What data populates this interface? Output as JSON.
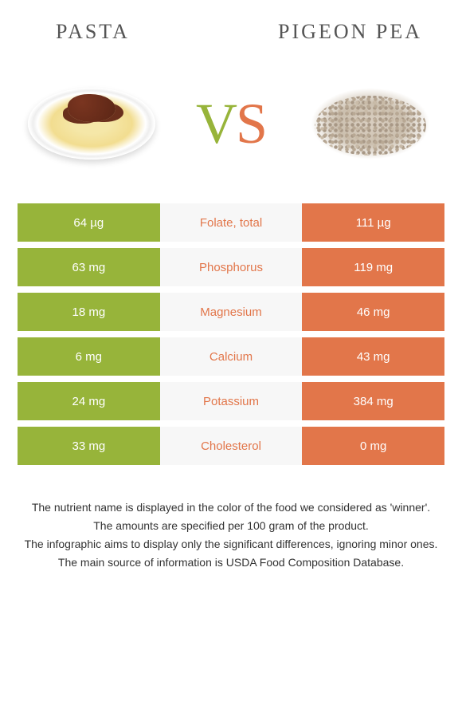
{
  "header": {
    "left_title": "Pasta",
    "right_title": "Pigeon pea"
  },
  "vs": {
    "v": "V",
    "s": "S"
  },
  "colors": {
    "green": "#97b43a",
    "orange": "#e2764a",
    "mid_bg": "#f7f7f7"
  },
  "rows": [
    {
      "left": "64 µg",
      "label": "Folate, total",
      "right": "111 µg",
      "winner": "orange"
    },
    {
      "left": "63 mg",
      "label": "Phosphorus",
      "right": "119 mg",
      "winner": "orange"
    },
    {
      "left": "18 mg",
      "label": "Magnesium",
      "right": "46 mg",
      "winner": "orange"
    },
    {
      "left": "6 mg",
      "label": "Calcium",
      "right": "43 mg",
      "winner": "orange"
    },
    {
      "left": "24 mg",
      "label": "Potassium",
      "right": "384 mg",
      "winner": "orange"
    },
    {
      "left": "33 mg",
      "label": "Cholesterol",
      "right": "0 mg",
      "winner": "orange"
    }
  ],
  "footer": {
    "line1": "The nutrient name is displayed in the color of the food we considered as 'winner'.",
    "line2": "The amounts are specified per 100 gram of the product.",
    "line3": "The infographic aims to display only the significant differences, ignoring minor ones.",
    "line4": "The main source of information is USDA Food Composition Database."
  }
}
